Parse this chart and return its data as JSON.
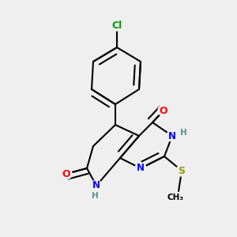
{
  "bg_color": "#efefef",
  "atom_colors": {
    "C": "#000000",
    "N": "#0000ff",
    "O": "#ff0000",
    "S": "#999900",
    "Cl": "#009900",
    "H": "#5a9090"
  },
  "bond_color": "#000000",
  "bond_width": 1.5,
  "fig_size": [
    3.0,
    3.0
  ],
  "dpi": 100
}
